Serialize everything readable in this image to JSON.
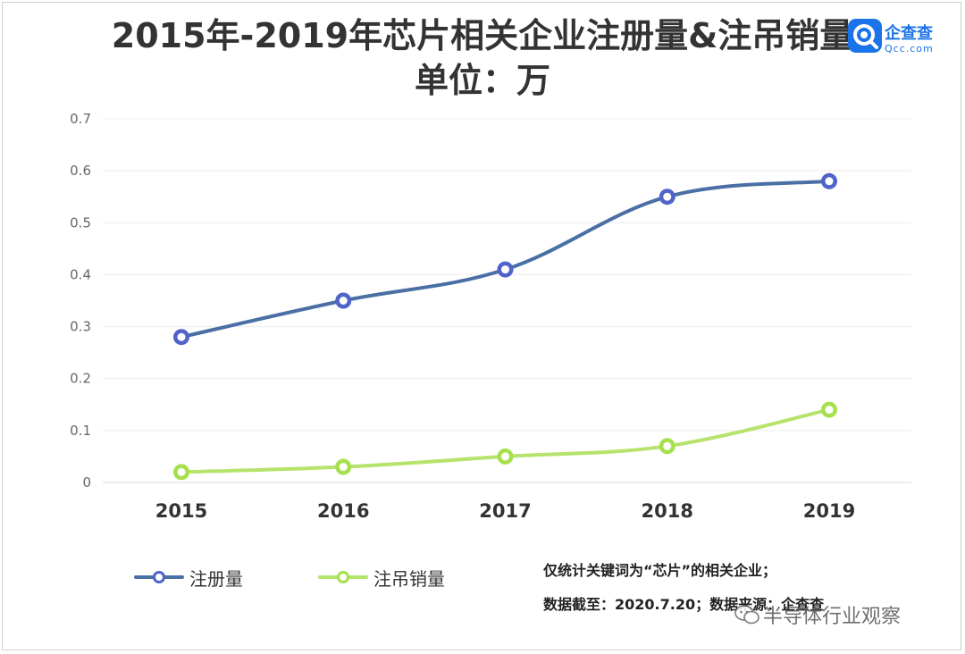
{
  "header": {
    "title_line1": "2015年-2019年芯片相关企业注册量&注吊销量",
    "title_line2": "单位：万"
  },
  "logo": {
    "name": "企查查",
    "domain": "Qcc.com",
    "icon": "qcc-logo-icon"
  },
  "notes": {
    "line1": "仅统计关键词为“芯片”的相关企业；",
    "line2": "数据截至：2020.7.20；数据来源：企查查"
  },
  "watermark": {
    "text": "半导体行业观察",
    "icon": "wechat-icon"
  },
  "chart_data": {
    "type": "line",
    "title": "2015年-2019年芯片相关企业注册量&注吊销量",
    "subtitle": "单位：万",
    "categories": [
      "2015",
      "2016",
      "2017",
      "2018",
      "2019"
    ],
    "series": [
      {
        "name": "注册量",
        "values": [
          0.28,
          0.35,
          0.41,
          0.55,
          0.58
        ],
        "color": "#4a6fa5",
        "marker_color": "#4f63c9"
      },
      {
        "name": "注吊销量",
        "values": [
          0.02,
          0.03,
          0.05,
          0.07,
          0.14
        ],
        "color": "#b5e36b",
        "marker_color": "#a6e04f"
      }
    ],
    "ylim": [
      0,
      0.7
    ],
    "yticks": [
      "0",
      "0.1",
      "0.2",
      "0.3",
      "0.4",
      "0.5",
      "0.6",
      "0.7"
    ],
    "grid": true,
    "legend_position": "bottom-left",
    "smooth": true
  }
}
